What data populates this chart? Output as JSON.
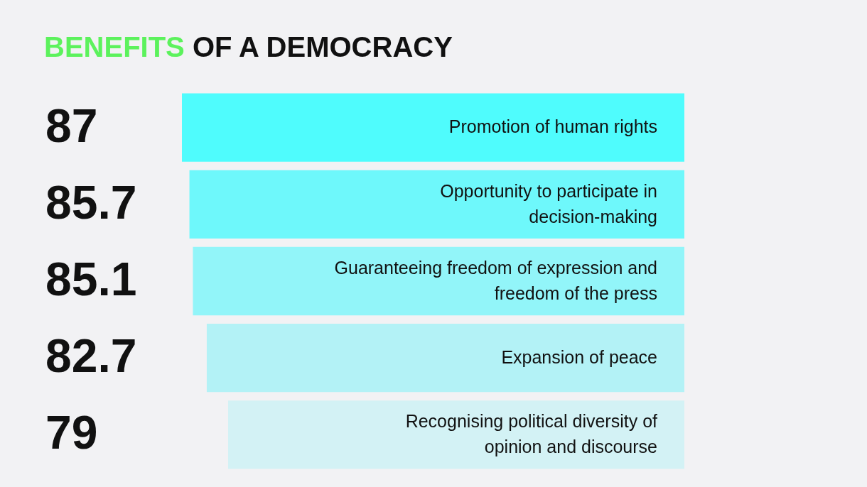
{
  "chart_data": {
    "type": "bar",
    "title": "BENEFITS OF A DEMOCRACY",
    "orientation": "horizontal",
    "data_labels": true,
    "categories": [
      "Promotion of human rights",
      "Opportunity to participate in decision-making",
      "Guaranteeing freedom of expression and freedom of the press",
      "Expansion of peace",
      "Recognising political diversity of opinion and discourse"
    ],
    "values": [
      87,
      85.7,
      85.1,
      82.7,
      79
    ],
    "colors": [
      "#4ffcfd",
      "#6ef8fb",
      "#92f5f9",
      "#b3f2f6",
      "#d3f2f5"
    ]
  }
}
